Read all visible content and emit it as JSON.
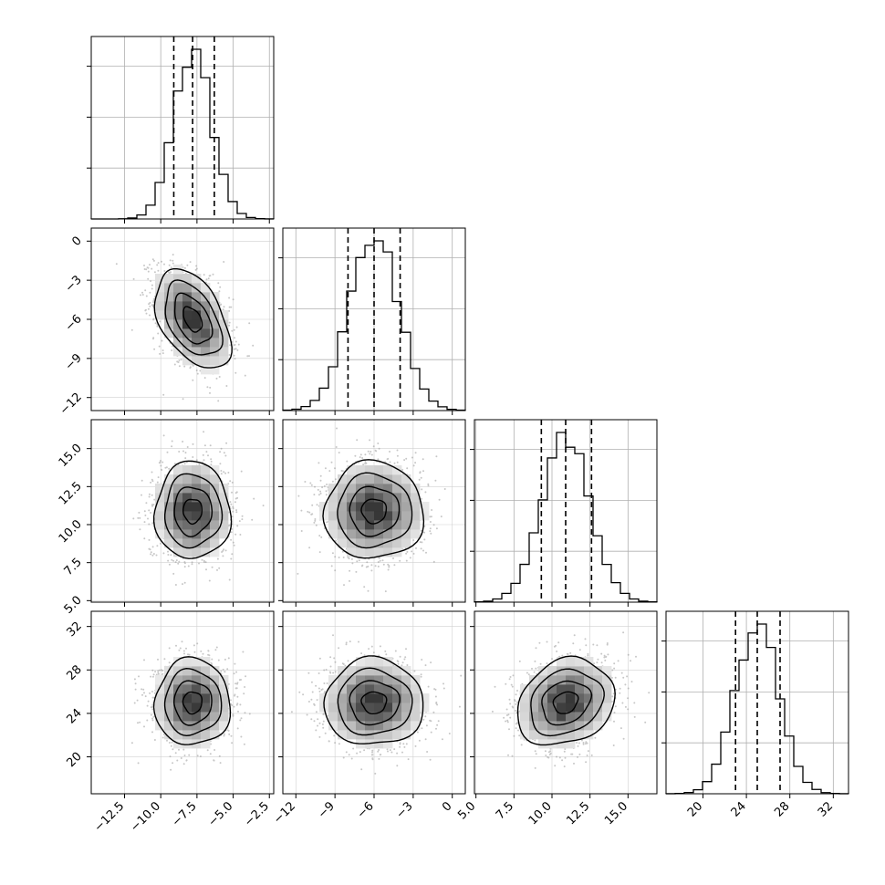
{
  "chart_data": {
    "type": "corner",
    "grid": true,
    "parameters": [
      {
        "mean": -7.8,
        "sd": 1.3,
        "q16": -9.1,
        "q50": -7.8,
        "q84": -6.3,
        "range": [
          -14.8,
          -2.2
        ],
        "ticks": [
          -12.5,
          -10.0,
          -7.5,
          -5.0,
          -2.5
        ],
        "tick_labels": [
          "−12.5",
          "−10.0",
          "−7.5",
          "−5.0",
          "−2.5"
        ]
      },
      {
        "mean": -6.0,
        "sd": 1.9,
        "q16": -8.0,
        "q50": -6.0,
        "q84": -4.0,
        "range": [
          -13.0,
          1.0
        ],
        "ticks": [
          -12,
          -9,
          -6,
          -3,
          0
        ],
        "tick_labels": [
          "−12",
          "−9",
          "−6",
          "−3",
          "0"
        ]
      },
      {
        "mean": 10.9,
        "sd": 1.6,
        "q16": 9.3,
        "q50": 10.9,
        "q84": 12.6,
        "range": [
          4.9,
          16.9
        ],
        "ticks": [
          5.0,
          7.5,
          10.0,
          12.5,
          15.0
        ],
        "tick_labels": [
          "5.0",
          "7.5",
          "10.0",
          "12.5",
          "15.0"
        ]
      },
      {
        "mean": 25.0,
        "sd": 2.0,
        "q16": 23.0,
        "q50": 25.0,
        "q84": 27.1,
        "range": [
          16.6,
          33.4
        ],
        "ticks": [
          20,
          24,
          28,
          32
        ],
        "tick_labels": [
          "20",
          "24",
          "28",
          "32"
        ]
      }
    ],
    "correlations": [
      [
        1.0,
        -0.45,
        0.0,
        0.0
      ],
      [
        -0.45,
        1.0,
        0.0,
        0.0
      ],
      [
        0.0,
        0.0,
        1.0,
        0.2
      ],
      [
        0.0,
        0.0,
        0.2,
        1.0
      ]
    ],
    "histogram_bins": 20,
    "contour_levels_sigma": [
      0.5,
      1.0,
      1.5,
      2.0
    ]
  }
}
